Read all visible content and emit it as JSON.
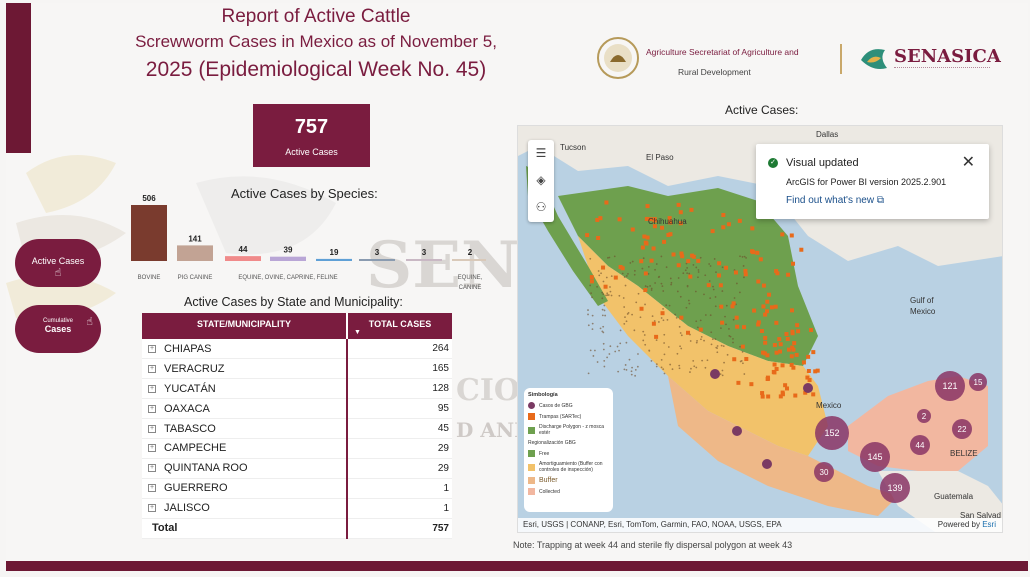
{
  "header": {
    "title_line1": "Report of Active Cattle",
    "title_line2": "Screwworm Cases in Mexico as of November 5,",
    "title_line3": "2025 (Epidemiological Week No. 45)"
  },
  "kpi": {
    "value": "757",
    "label": "Active Cases"
  },
  "buttons": {
    "active": {
      "label": "Active Cases",
      "icon": "hand-pointer-icon"
    },
    "cumulative": {
      "label_small": "Cumulative",
      "label": "Cases",
      "icon": "hand-pointer-icon"
    }
  },
  "species": {
    "title": "Active Cases by Species:",
    "bars": [
      {
        "value": 506,
        "value_label": "506",
        "label": "BOVINE",
        "color": "#7a3b2e"
      },
      {
        "value": 141,
        "value_label": "141",
        "label": "PIG CANINE",
        "color": "#c2a394"
      },
      {
        "value": 44,
        "value_label": "44",
        "label": "",
        "color": "#f08a8a"
      },
      {
        "value": 39,
        "value_label": "39",
        "label": "EQUINE, OVINE, CAPRINE, FELINE",
        "color": "#b9a6d6"
      },
      {
        "value": 19,
        "value_label": "19",
        "label": "",
        "color": "#5fa0d6"
      },
      {
        "value": 3,
        "value_label": "3",
        "label": "",
        "color": "#8a9bb0"
      },
      {
        "value": 3,
        "value_label": "3",
        "label": "",
        "color": "#c9b8c4"
      },
      {
        "value": 2,
        "value_label": "2",
        "label": "EQUINE, CANINE",
        "color": "#d9c9b9"
      }
    ]
  },
  "table": {
    "title": "Active Cases by State and Municipality:",
    "col1": "STATE/MUNICIPALITY",
    "col2": "TOTAL CASES",
    "rows": [
      {
        "state": "CHIAPAS",
        "total": "264"
      },
      {
        "state": "VERACRUZ",
        "total": "165"
      },
      {
        "state": "YUCATÁN",
        "total": "128"
      },
      {
        "state": "OAXACA",
        "total": "95"
      },
      {
        "state": "TABASCO",
        "total": "45"
      },
      {
        "state": "CAMPECHE",
        "total": "29"
      },
      {
        "state": "QUINTANA ROO",
        "total": "29"
      },
      {
        "state": "GUERRERO",
        "total": "1"
      },
      {
        "state": "JALISCO",
        "total": "1"
      }
    ],
    "total_label": "Total",
    "total_value": "757"
  },
  "logos": {
    "agri_line1": "Agriculture Secretariat of Agriculture and",
    "agri_line2": "Rural Development",
    "senasica": "SENASICA"
  },
  "map": {
    "title": "Active Cases:",
    "toast": {
      "heading": "Visual updated",
      "version": "ArcGIS for Power BI version 2025.2.901",
      "link": "Find out what's new"
    },
    "places": [
      "Dallas",
      "Tucson",
      "El Paso",
      "Chihuahua",
      "Gulf of",
      "Mexico",
      "Mexico",
      "BELIZE",
      "Guatemala",
      "San Salvad"
    ],
    "clusters": [
      "152",
      "145",
      "139",
      "121",
      "44",
      "30",
      "22",
      "15",
      "2"
    ],
    "legend": {
      "title": "Simbología",
      "items": [
        "Casos de GBG",
        "Trampas (SARTec)",
        "Discharge Polygon - z mosca estér",
        "Regionalización GBG",
        "Free",
        "Amortiguamiento (Buffer con controles de inspección)",
        "Buffer",
        "Collected"
      ]
    },
    "attribution": "Esri, USGS | CONANP, Esri, TomTom, Garmin, FAO, NOAA, USGS, EPA",
    "powered": "Powered by",
    "powered_brand": "Esri"
  },
  "note": "Note: Trapping at week 44 and sterile fly dispersal polygon at week 43"
}
